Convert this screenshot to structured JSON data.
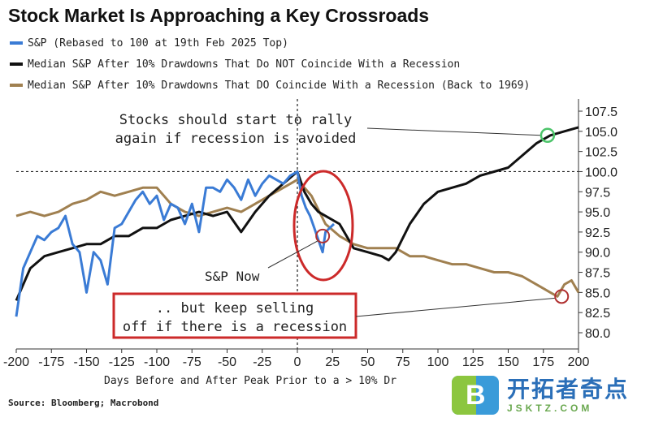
{
  "chart_data": {
    "type": "line",
    "title": "Stock Market Is Approaching a Key Crossroads",
    "xlabel": "Days Before and After Peak Prior to a > 10% Dr",
    "ylabel": "",
    "xlim": [
      -200,
      200
    ],
    "ylim": [
      80,
      107.5
    ],
    "x_ticks": [
      -200,
      -175,
      -150,
      -125,
      -100,
      -75,
      -50,
      -25,
      0,
      25,
      50,
      75,
      100,
      125,
      150,
      175,
      200
    ],
    "y_ticks": [
      "80.0",
      "82.5",
      "85.0",
      "87.5",
      "90.0",
      "92.5",
      "95.0",
      "97.5",
      "100.0",
      "102.5",
      "105.0",
      "107.5"
    ],
    "y_tick_values": [
      80,
      82.5,
      85,
      87.5,
      90,
      92.5,
      95,
      97.5,
      100,
      102.5,
      105,
      107.5
    ],
    "y_axis_position": "right",
    "grid": false,
    "legend_position": "top-left",
    "reference_lines": {
      "horizontal_y": 100,
      "vertical_x": 0
    },
    "series": [
      {
        "name": "S&P (Rebased to 100 at 19th Feb 2025 Top)",
        "color": "#3a7bd5",
        "x": [
          -200,
          -195,
          -190,
          -185,
          -180,
          -175,
          -170,
          -165,
          -160,
          -155,
          -150,
          -145,
          -140,
          -135,
          -130,
          -125,
          -120,
          -115,
          -110,
          -105,
          -100,
          -95,
          -90,
          -85,
          -80,
          -75,
          -70,
          -65,
          -60,
          -55,
          -50,
          -45,
          -40,
          -35,
          -30,
          -25,
          -20,
          -15,
          -10,
          -5,
          0,
          3,
          6,
          9,
          12,
          15,
          18,
          20,
          23,
          26
        ],
        "values": [
          82,
          88,
          90,
          92,
          91.5,
          92.5,
          93,
          94.5,
          91,
          90,
          85,
          90,
          89,
          86,
          93,
          93.5,
          95,
          96.5,
          97.5,
          96,
          97,
          94,
          96,
          95.5,
          93.5,
          96,
          92.5,
          98,
          98,
          97.5,
          99,
          98,
          96.5,
          99,
          97,
          98.5,
          99.5,
          99,
          98.5,
          99.5,
          100,
          97,
          95.5,
          94.5,
          93,
          91.5,
          90,
          92.5,
          93,
          93.5
        ]
      },
      {
        "name": "Median S&P After 10% Drawdowns That Do NOT Coincide With a Recession",
        "color": "#111111",
        "x": [
          -200,
          -190,
          -180,
          -170,
          -160,
          -150,
          -140,
          -130,
          -120,
          -110,
          -100,
          -90,
          -80,
          -70,
          -60,
          -50,
          -40,
          -30,
          -20,
          -10,
          0,
          5,
          10,
          15,
          20,
          30,
          40,
          50,
          60,
          65,
          70,
          80,
          90,
          100,
          110,
          120,
          130,
          140,
          150,
          160,
          170,
          175,
          180,
          190,
          200
        ],
        "values": [
          84,
          88,
          89.5,
          90,
          90.5,
          91,
          91,
          92,
          92,
          93,
          93,
          94,
          94.5,
          95,
          94.5,
          95,
          92.5,
          95,
          97,
          98.5,
          100,
          97.5,
          96,
          95,
          94.5,
          93.5,
          90.5,
          90,
          89.5,
          89,
          90,
          93.5,
          96,
          97.5,
          98,
          98.5,
          99.5,
          100,
          100.5,
          102,
          103.5,
          104,
          104.5,
          105,
          105.5
        ]
      },
      {
        "name": "Median S&P After 10% Drawdowns That DO Coincide With a Recession (Back to 1969)",
        "color": "#a08050",
        "x": [
          -200,
          -190,
          -180,
          -170,
          -160,
          -150,
          -140,
          -130,
          -120,
          -110,
          -100,
          -95,
          -90,
          -80,
          -70,
          -60,
          -50,
          -40,
          -30,
          -20,
          -10,
          0,
          10,
          20,
          30,
          40,
          50,
          60,
          70,
          80,
          90,
          100,
          110,
          120,
          130,
          140,
          150,
          160,
          170,
          175,
          180,
          185,
          190,
          195,
          200
        ],
        "values": [
          94.5,
          95,
          94.5,
          95,
          96,
          96.5,
          97.5,
          97,
          97.5,
          98,
          98,
          97,
          96,
          95,
          94.5,
          95,
          95.5,
          95,
          96,
          97,
          98,
          99,
          97,
          93.5,
          92,
          91,
          90.5,
          90.5,
          90.5,
          89.5,
          89.5,
          89,
          88.5,
          88.5,
          88,
          87.5,
          87.5,
          87,
          86,
          85.5,
          85,
          84.5,
          86,
          86.5,
          85
        ]
      }
    ],
    "annotations": [
      {
        "text_lines": [
          "Stocks should start to rally",
          "again if recession is avoided"
        ],
        "points_to": {
          "x": 178,
          "y": 104.5
        }
      },
      {
        "text": "S&P Now",
        "points_to": {
          "x": 18,
          "y": 92
        }
      },
      {
        "text_lines": [
          ".. but keep selling",
          "off if there is a recession"
        ],
        "boxed": true,
        "points_to": {
          "x": 188,
          "y": 84.5
        }
      }
    ]
  },
  "source": "Source: Bloomberg; Macrobond",
  "watermark": {
    "name": "开拓者奇点",
    "url": "JSKTZ.COM",
    "logo_letter": "B"
  }
}
